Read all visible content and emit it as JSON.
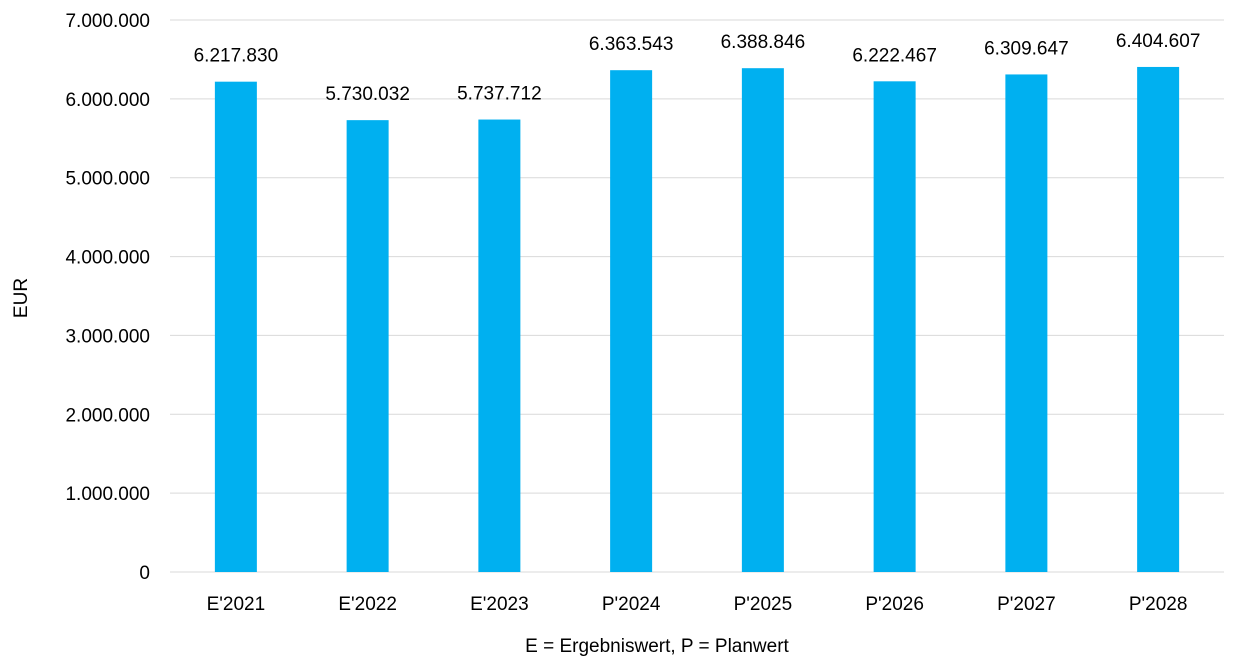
{
  "chart_data": {
    "type": "bar",
    "categories": [
      "E'2021",
      "E'2022",
      "E'2023",
      "P'2024",
      "P'2025",
      "P'2026",
      "P'2027",
      "P'2028"
    ],
    "values": [
      6217830,
      5730032,
      5737712,
      6363543,
      6388846,
      6222467,
      6309647,
      6404607
    ],
    "value_labels": [
      "6.217.830",
      "5.730.032",
      "5.737.712",
      "6.363.543",
      "6.388.846",
      "6.222.467",
      "6.309.647",
      "6.404.607"
    ],
    "ylabel": "EUR",
    "xlabel": "E = Ergebniswert, P = Planwert",
    "ylim": [
      0,
      7000000
    ],
    "yticks": [
      0,
      1000000,
      2000000,
      3000000,
      4000000,
      5000000,
      6000000,
      7000000
    ],
    "ytick_labels": [
      "0",
      "1.000.000",
      "2.000.000",
      "3.000.000",
      "4.000.000",
      "5.000.000",
      "6.000.000",
      "7.000.000"
    ],
    "grid": true,
    "legend": "none",
    "bar_color": "#00b0f0",
    "grid_color": "#d9d9d9"
  }
}
